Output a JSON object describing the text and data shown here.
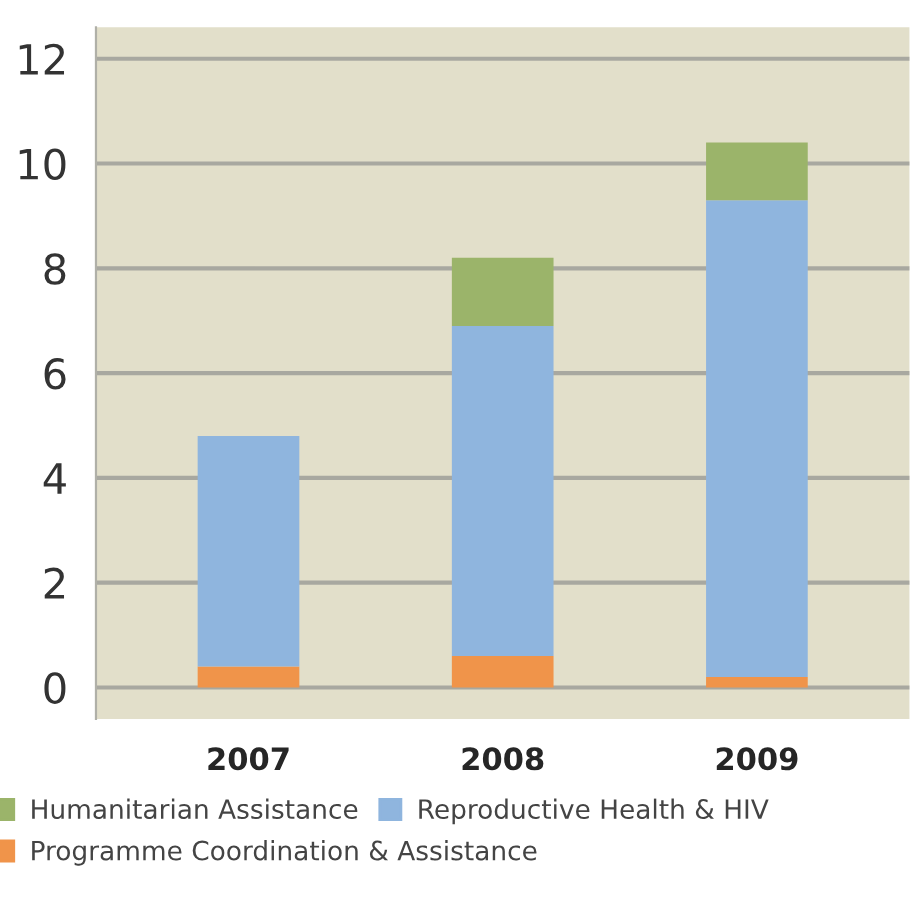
{
  "chart_data": {
    "type": "bar",
    "stacked": true,
    "categories": [
      "2007",
      "2008",
      "2009"
    ],
    "series": [
      {
        "name": "Programme Coordination & Assistance",
        "color": "#f0944a",
        "values": [
          0.4,
          0.6,
          0.2
        ]
      },
      {
        "name": "Reproductive Health & HIV",
        "color": "#8fb5de",
        "values": [
          4.4,
          6.3,
          9.1
        ]
      },
      {
        "name": "Humanitarian Assistance",
        "color": "#9bb46a",
        "values": [
          null,
          1.3,
          1.1
        ]
      }
    ],
    "ylim": [
      -0.6,
      12.6
    ],
    "yticks": [
      0,
      2,
      4,
      6,
      8,
      10,
      12
    ],
    "grid": "y",
    "legend": "bottom"
  }
}
